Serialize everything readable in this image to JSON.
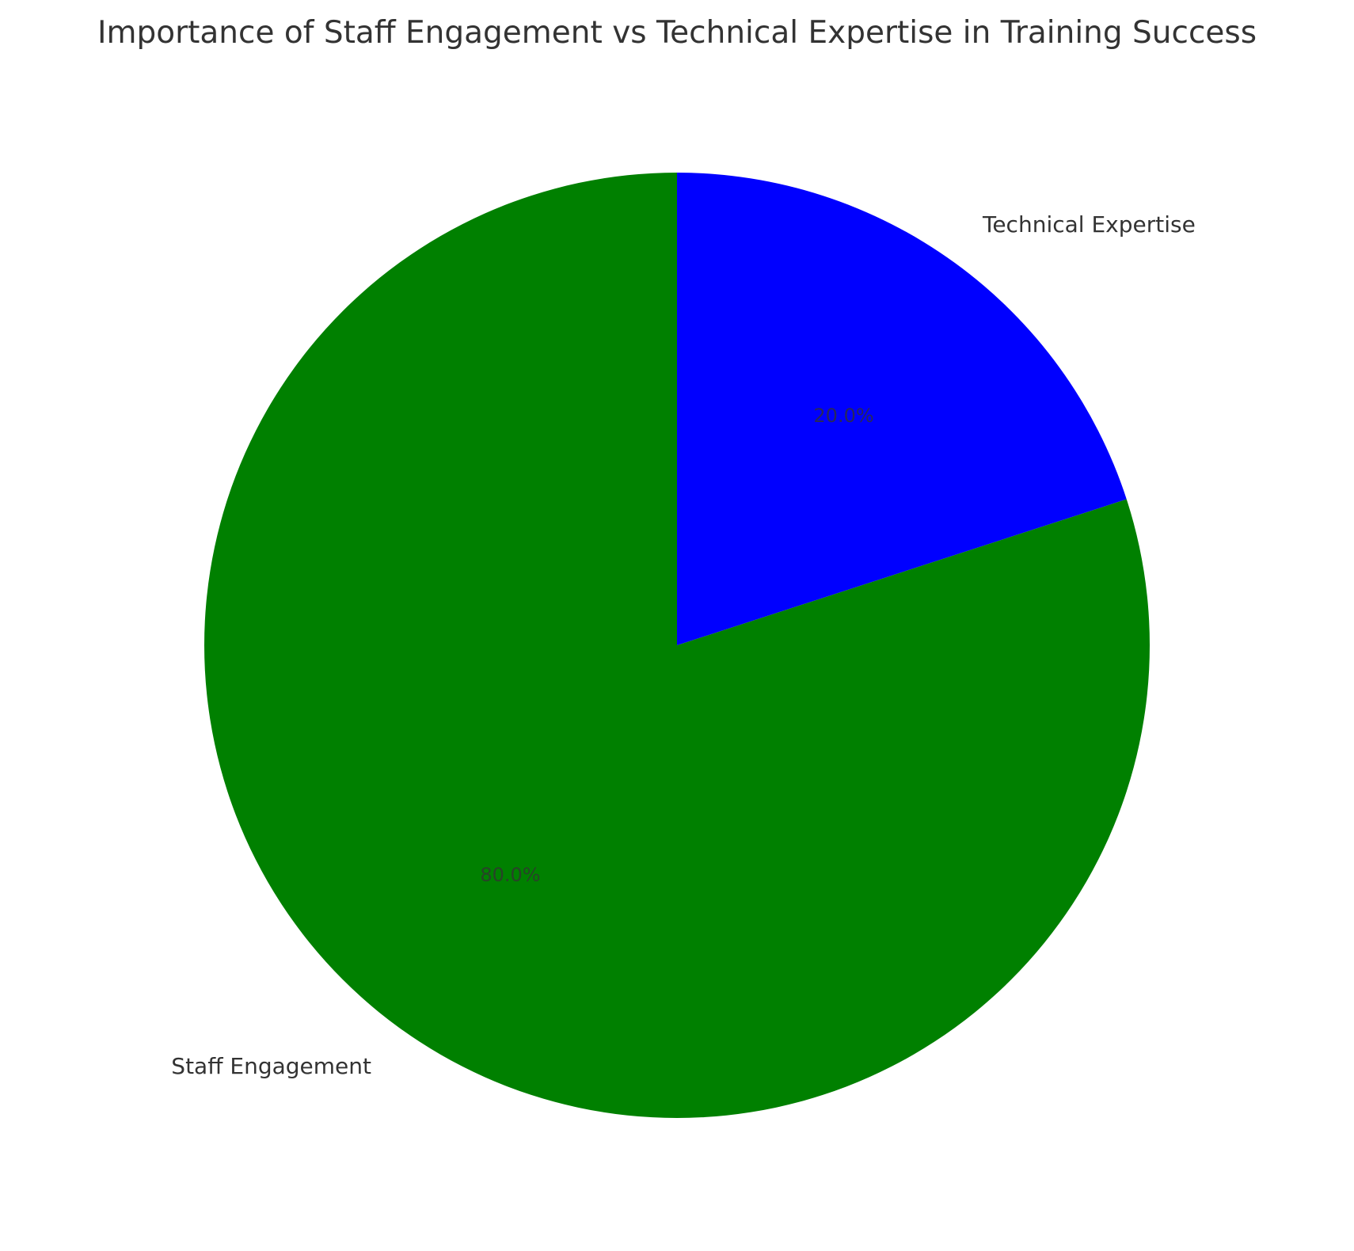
{
  "chart_data": {
    "type": "pie",
    "title": "Importance of Staff Engagement vs Technical Expertise in Training Success",
    "categories": [
      "Technical Expertise",
      "Staff Engagement"
    ],
    "values": [
      20,
      80
    ],
    "percent_labels": [
      "20.0%",
      "80.0%"
    ],
    "colors": [
      "#0000ff",
      "#008000"
    ],
    "start_angle_deg": 90,
    "direction": "clockwise",
    "legend": "none"
  }
}
